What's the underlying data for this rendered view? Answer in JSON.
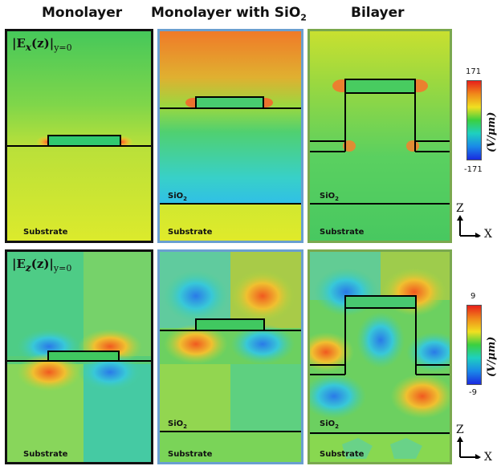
{
  "columns": [
    {
      "title": "Monolayer"
    },
    {
      "title": "Monolayer with SiO",
      "title_sub": "2"
    },
    {
      "title": "Bilayer"
    }
  ],
  "rows": [
    {
      "field_label": "|E",
      "field_comp": "x",
      "field_rest": "(z)|",
      "field_sub": "y=0",
      "colorbar": {
        "max": "171",
        "min": "-171",
        "unit": "(V/μm)"
      }
    },
    {
      "field_label": "|E",
      "field_comp": "z",
      "field_rest": "(z)|",
      "field_sub": "y=0",
      "colorbar": {
        "max": "9",
        "min": "-9",
        "unit": "(V/μm)"
      }
    }
  ],
  "labels": {
    "substrate": "Substrate",
    "sio2": "SiO",
    "sio2_sub": "2"
  },
  "axes": {
    "z": "Z",
    "x": "X"
  },
  "colors": {
    "monolayer_border": "#111111",
    "sio2_border": "#6a9fd0",
    "bilayer_border": "#7aa84e",
    "structure_line": "#000000"
  }
}
